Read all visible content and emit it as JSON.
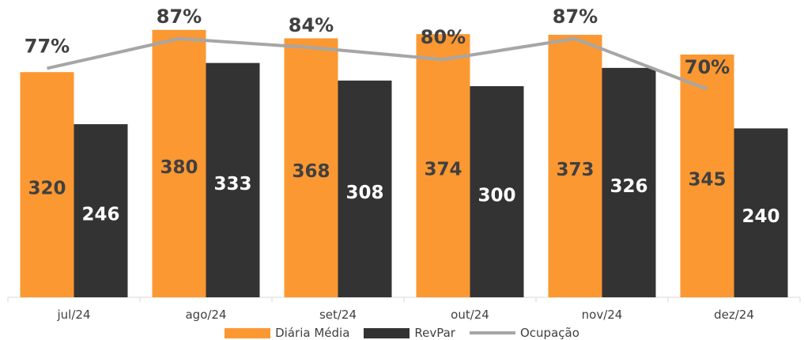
{
  "chart_data": {
    "type": "bar",
    "categories": [
      "jul/24",
      "ago/24",
      "set/24",
      "out/24",
      "nov/24",
      "dez/24"
    ],
    "series": [
      {
        "name": "Diária Média",
        "type": "bar",
        "color": "#FB9832",
        "label_color": "#404040",
        "values": [
          320,
          380,
          368,
          374,
          373,
          345
        ]
      },
      {
        "name": "RevPar",
        "type": "bar",
        "color": "#333333",
        "label_color": "#ffffff",
        "values": [
          246,
          333,
          308,
          300,
          326,
          240
        ]
      },
      {
        "name": "Ocupação",
        "type": "line",
        "color": "#A6A6A6",
        "values": [
          77,
          87,
          84,
          80,
          87,
          70
        ],
        "labels": [
          "77%",
          "87%",
          "84%",
          "80%",
          "87%",
          "70%"
        ]
      }
    ],
    "ylim_bars": [
      0,
      400
    ],
    "ylim_line": [
      0,
      100
    ],
    "grid": false,
    "legend_position": "bottom"
  }
}
